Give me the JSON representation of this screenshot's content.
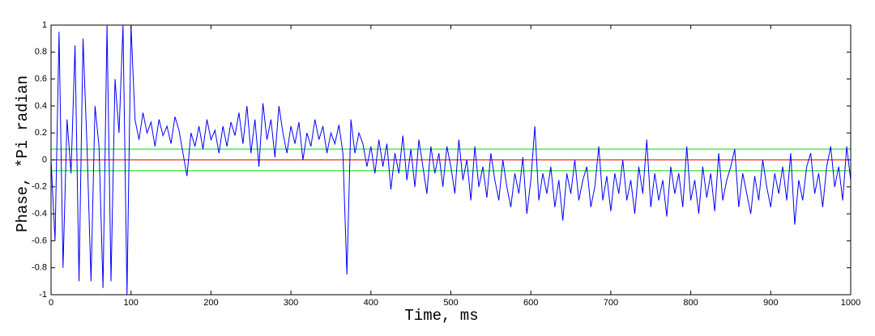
{
  "chart_data": {
    "type": "line",
    "xlabel": "Time, ms",
    "ylabel": "Phase, *Pi radian",
    "x": [
      0,
      5,
      10,
      15,
      20,
      25,
      30,
      35,
      40,
      45,
      50,
      55,
      60,
      65,
      70,
      75,
      80,
      85,
      90,
      95,
      100,
      105,
      110,
      115,
      120,
      125,
      130,
      135,
      140,
      145,
      150,
      155,
      160,
      165,
      170,
      175,
      180,
      185,
      190,
      195,
      200,
      205,
      210,
      215,
      220,
      225,
      230,
      235,
      240,
      245,
      250,
      255,
      260,
      265,
      270,
      275,
      280,
      285,
      290,
      295,
      300,
      305,
      310,
      315,
      320,
      325,
      330,
      335,
      340,
      345,
      350,
      355,
      360,
      365,
      370,
      375,
      380,
      385,
      390,
      395,
      400,
      405,
      410,
      415,
      420,
      425,
      430,
      435,
      440,
      445,
      450,
      455,
      460,
      465,
      470,
      475,
      480,
      485,
      490,
      495,
      500,
      505,
      510,
      515,
      520,
      525,
      530,
      535,
      540,
      545,
      550,
      555,
      560,
      565,
      570,
      575,
      580,
      585,
      590,
      595,
      600,
      605,
      610,
      615,
      620,
      625,
      630,
      635,
      640,
      645,
      650,
      655,
      660,
      665,
      670,
      675,
      680,
      685,
      690,
      695,
      700,
      705,
      710,
      715,
      720,
      725,
      730,
      735,
      740,
      745,
      750,
      755,
      760,
      765,
      770,
      775,
      780,
      785,
      790,
      795,
      800,
      805,
      810,
      815,
      820,
      825,
      830,
      835,
      840,
      845,
      850,
      855,
      860,
      865,
      870,
      875,
      880,
      885,
      890,
      895,
      900,
      905,
      910,
      915,
      920,
      925,
      930,
      935,
      940,
      945,
      950,
      955,
      960,
      965,
      970,
      975,
      980,
      985,
      990,
      995,
      1000
    ],
    "series": [
      {
        "name": "phase",
        "color": "#0000ff",
        "values": [
          0,
          -0.6,
          0.95,
          -0.8,
          0.3,
          -0.1,
          0.85,
          -0.9,
          0.9,
          0.1,
          -0.9,
          0.4,
          0.1,
          -0.95,
          1,
          -0.9,
          0.6,
          0.2,
          1,
          -1,
          1,
          0.3,
          0.15,
          0.35,
          0.2,
          0.28,
          0.1,
          0.3,
          0.18,
          0.25,
          0.12,
          0.32,
          0.22,
          0.05,
          -0.12,
          0.2,
          0.1,
          0.25,
          0.08,
          0.3,
          0.15,
          0.22,
          0.05,
          0.25,
          0.1,
          0.28,
          0.18,
          0.35,
          0.12,
          0.4,
          0.05,
          0.3,
          -0.05,
          0.42,
          0.15,
          0.3,
          0.02,
          0.4,
          0.2,
          0.05,
          0.25,
          0.12,
          0.28,
          0,
          0.2,
          0.1,
          0.3,
          0.15,
          0.25,
          0.05,
          0.2,
          0.12,
          0.26,
          0.05,
          -0.85,
          0.3,
          0.05,
          0.2,
          0.12,
          -0.05,
          0.1,
          -0.1,
          0.15,
          -0.05,
          0.12,
          -0.22,
          0.05,
          -0.1,
          0.18,
          -0.15,
          0.08,
          -0.2,
          0.15,
          -0.05,
          -0.25,
          0.1,
          -0.1,
          0.05,
          -0.2,
          0.1,
          -0.05,
          -0.25,
          0.15,
          -0.15,
          0,
          -0.3,
          0.1,
          -0.2,
          -0.05,
          -0.28,
          0.05,
          -0.15,
          -0.3,
          0,
          -0.2,
          -0.35,
          -0.1,
          -0.25,
          0.02,
          -0.4,
          -0.15,
          0.25,
          -0.3,
          -0.1,
          -0.25,
          -0.05,
          -0.35,
          -0.15,
          -0.45,
          -0.1,
          -0.25,
          0,
          -0.3,
          -0.15,
          -0.05,
          -0.35,
          -0.2,
          0.1,
          -0.3,
          -0.12,
          -0.38,
          -0.1,
          -0.25,
          0,
          -0.3,
          -0.15,
          -0.4,
          -0.05,
          -0.25,
          0.15,
          -0.35,
          -0.1,
          -0.3,
          -0.15,
          -0.42,
          -0.05,
          -0.25,
          -0.1,
          -0.35,
          0.1,
          -0.3,
          -0.15,
          -0.4,
          -0.05,
          -0.28,
          -0.1,
          -0.38,
          0.05,
          -0.3,
          -0.15,
          -0.05,
          0.08,
          -0.35,
          -0.1,
          -0.25,
          -0.4,
          -0.12,
          -0.3,
          0,
          -0.2,
          -0.35,
          -0.1,
          -0.25,
          -0.05,
          -0.3,
          0.05,
          -0.48,
          -0.15,
          -0.3,
          -0.05,
          0.05,
          -0.25,
          -0.1,
          -0.35,
          -0.05,
          0.1,
          -0.2,
          -0.05,
          -0.3,
          0.1,
          -0.15
        ]
      }
    ],
    "reference_lines": [
      {
        "value": 0.08,
        "color": "#00dd00"
      },
      {
        "value": -0.08,
        "color": "#00dd00"
      },
      {
        "value": 0,
        "color": "#ff0000"
      }
    ],
    "xlim": [
      0,
      1000
    ],
    "xticks": [
      0,
      100,
      200,
      300,
      400,
      500,
      600,
      700,
      800,
      900,
      1000
    ],
    "ylim": [
      -1,
      1
    ],
    "yticks": [
      -1,
      -0.8,
      -0.6,
      -0.4,
      -0.2,
      0,
      0.2,
      0.4,
      0.6,
      0.8,
      1
    ],
    "grid": false
  }
}
